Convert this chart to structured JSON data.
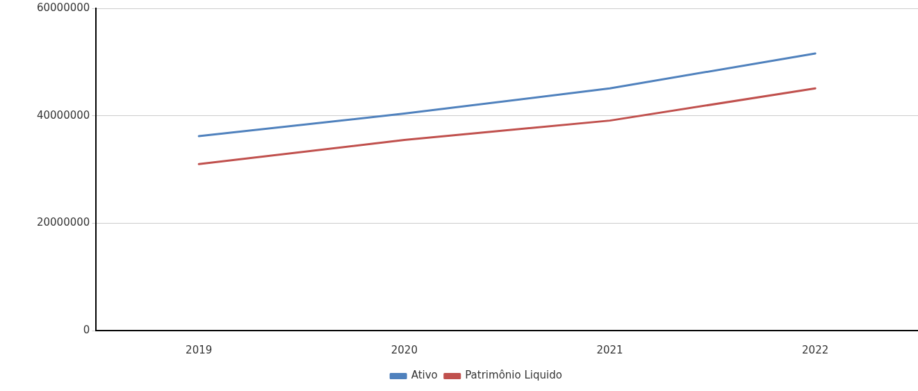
{
  "chart_data": {
    "type": "line",
    "categories": [
      "2019",
      "2020",
      "2021",
      "2022"
    ],
    "series": [
      {
        "name": "Ativo",
        "color": "#4f81bd",
        "values": [
          36200000,
          40400000,
          45100000,
          51600000
        ]
      },
      {
        "name": "Patrimônio Liquido",
        "color": "#c0504d",
        "values": [
          31000000,
          35500000,
          39100000,
          45100000
        ]
      }
    ],
    "ylim": [
      0,
      60000000
    ],
    "yticks": [
      0,
      20000000,
      40000000,
      60000000
    ],
    "grid": "y",
    "legend": "bottom",
    "marker": "none",
    "line_style": "solid"
  }
}
